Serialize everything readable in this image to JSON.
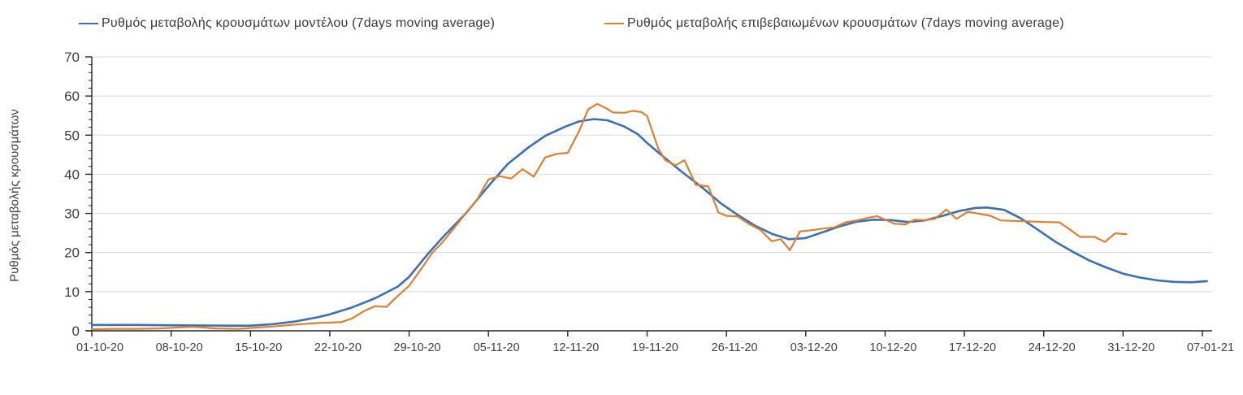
{
  "chart_data": {
    "type": "line",
    "title": "",
    "xlabel": "",
    "ylabel": "Ρυθμός μεταβολής κρουσμάτων",
    "ylim": [
      0,
      70
    ],
    "y_major_step": 10,
    "y_minor_step": 2,
    "grid": "horizontal-major",
    "legend_position": "top",
    "x_tick_labels": [
      "01-10-20",
      "08-10-20",
      "15-10-20",
      "22-10-20",
      "29-10-20",
      "05-11-20",
      "12-11-20",
      "19-11-20",
      "26-11-20",
      "03-12-20",
      "10-12-20",
      "17-12-20",
      "24-12-20",
      "31-12-20",
      "07-01-21"
    ],
    "x_tick_days": [
      0,
      7,
      14,
      21,
      28,
      35,
      42,
      49,
      56,
      63,
      70,
      77,
      84,
      91,
      98
    ],
    "xlim_days": [
      0,
      98.5
    ],
    "colors": {
      "axis": "#262626",
      "grid": "#d9d9d9",
      "tick_label": "#404040",
      "series_model": "#3c70b4",
      "series_confirmed": "#dd8033"
    },
    "series": [
      {
        "name": "Ρυθμός μεταβολής κρουσμάτων μοντέλου (7days moving average)",
        "color": "#3c70b4",
        "stroke_width": 2.6,
        "points": [
          [
            0,
            1.5
          ],
          [
            4,
            1.5
          ],
          [
            8,
            1.4
          ],
          [
            12,
            1.3
          ],
          [
            14,
            1.3
          ],
          [
            16,
            1.7
          ],
          [
            18,
            2.4
          ],
          [
            20,
            3.5
          ],
          [
            21,
            4.2
          ],
          [
            23,
            6.0
          ],
          [
            25,
            8.3
          ],
          [
            27,
            11.3
          ],
          [
            28,
            13.8
          ],
          [
            29.7,
            19.8
          ],
          [
            31,
            24.0
          ],
          [
            33,
            30.0
          ],
          [
            35,
            37.0
          ],
          [
            36.7,
            42.6
          ],
          [
            38.5,
            46.8
          ],
          [
            40,
            49.8
          ],
          [
            41.8,
            52.2
          ],
          [
            43,
            53.5
          ],
          [
            44.3,
            54.1
          ],
          [
            45.5,
            53.8
          ],
          [
            47,
            52.2
          ],
          [
            48.2,
            50.2
          ],
          [
            49,
            48.0
          ],
          [
            50.3,
            44.8
          ],
          [
            52,
            40.8
          ],
          [
            54,
            36.3
          ],
          [
            55.5,
            32.6
          ],
          [
            57,
            29.6
          ],
          [
            58.5,
            26.9
          ],
          [
            60,
            24.8
          ],
          [
            61.5,
            23.4
          ],
          [
            63,
            23.7
          ],
          [
            64.5,
            25.2
          ],
          [
            66,
            26.7
          ],
          [
            67.5,
            27.9
          ],
          [
            69,
            28.4
          ],
          [
            70.5,
            28.3
          ],
          [
            72,
            27.8
          ],
          [
            73.5,
            28.2
          ],
          [
            75,
            29.3
          ],
          [
            76.5,
            30.6
          ],
          [
            78,
            31.4
          ],
          [
            79,
            31.5
          ],
          [
            80.5,
            30.9
          ],
          [
            82,
            28.7
          ],
          [
            83.5,
            25.8
          ],
          [
            85,
            22.8
          ],
          [
            86.5,
            20.3
          ],
          [
            88,
            18.0
          ],
          [
            89.5,
            16.2
          ],
          [
            91,
            14.6
          ],
          [
            92.5,
            13.6
          ],
          [
            94,
            12.9
          ],
          [
            95.5,
            12.5
          ],
          [
            97,
            12.4
          ],
          [
            98.4,
            12.7
          ]
        ]
      },
      {
        "name": "Ρυθμός μεταβολής επιβεβαιωμένων κρουσμάτων (7days moving average)",
        "color": "#dd8033",
        "stroke_width": 2.2,
        "points": [
          [
            0,
            0.4
          ],
          [
            2,
            0.5
          ],
          [
            4,
            0.5
          ],
          [
            6,
            0.6
          ],
          [
            8,
            0.9
          ],
          [
            9,
            1.0
          ],
          [
            11,
            0.6
          ],
          [
            13,
            0.5
          ],
          [
            14,
            0.7
          ],
          [
            16,
            1.1
          ],
          [
            18,
            1.6
          ],
          [
            20,
            2.0
          ],
          [
            22,
            2.2
          ],
          [
            23,
            3.2
          ],
          [
            24,
            5.0
          ],
          [
            25,
            6.3
          ],
          [
            26,
            6.1
          ],
          [
            27,
            8.9
          ],
          [
            28,
            11.5
          ],
          [
            29,
            15.5
          ],
          [
            30,
            19.8
          ],
          [
            31,
            22.8
          ],
          [
            32,
            26.4
          ],
          [
            33,
            30.0
          ],
          [
            34,
            33.5
          ],
          [
            35,
            38.7
          ],
          [
            36,
            39.5
          ],
          [
            37,
            38.9
          ],
          [
            38,
            41.3
          ],
          [
            39,
            39.4
          ],
          [
            40,
            44.3
          ],
          [
            41,
            45.2
          ],
          [
            42,
            45.5
          ],
          [
            43,
            51.0
          ],
          [
            43.8,
            56.6
          ],
          [
            44.6,
            58.0
          ],
          [
            45.3,
            57.0
          ],
          [
            46,
            55.8
          ],
          [
            47,
            55.7
          ],
          [
            47.7,
            56.2
          ],
          [
            48.5,
            55.9
          ],
          [
            49,
            54.9
          ],
          [
            50,
            46.5
          ],
          [
            50.6,
            43.6
          ],
          [
            51.5,
            42.3
          ],
          [
            52.3,
            43.6
          ],
          [
            53.3,
            37.3
          ],
          [
            54.4,
            36.9
          ],
          [
            55.3,
            30.2
          ],
          [
            56,
            29.4
          ],
          [
            57,
            29.2
          ],
          [
            58,
            27.3
          ],
          [
            59,
            25.8
          ],
          [
            60,
            22.9
          ],
          [
            60.8,
            23.4
          ],
          [
            61.6,
            20.6
          ],
          [
            62.5,
            25.4
          ],
          [
            63.5,
            25.7
          ],
          [
            64.5,
            26.1
          ],
          [
            65.5,
            26.4
          ],
          [
            66.5,
            27.7
          ],
          [
            67.5,
            28.2
          ],
          [
            68.5,
            28.9
          ],
          [
            69.3,
            29.3
          ],
          [
            70,
            28.4
          ],
          [
            70.8,
            27.4
          ],
          [
            71.8,
            27.2
          ],
          [
            72.6,
            28.4
          ],
          [
            73.6,
            28.3
          ],
          [
            74.4,
            28.6
          ],
          [
            75.4,
            31.0
          ],
          [
            76.3,
            28.6
          ],
          [
            77.3,
            30.4
          ],
          [
            78.3,
            29.9
          ],
          [
            79.3,
            29.4
          ],
          [
            80.2,
            28.2
          ],
          [
            81.2,
            28.1
          ],
          [
            82.3,
            28.0
          ],
          [
            83.2,
            27.9
          ],
          [
            84.2,
            27.8
          ],
          [
            85.4,
            27.7
          ],
          [
            86.3,
            25.9
          ],
          [
            87.2,
            24.0
          ],
          [
            88.5,
            24.0
          ],
          [
            89.4,
            22.7
          ],
          [
            90.3,
            24.9
          ],
          [
            91.3,
            24.7
          ]
        ]
      }
    ]
  }
}
